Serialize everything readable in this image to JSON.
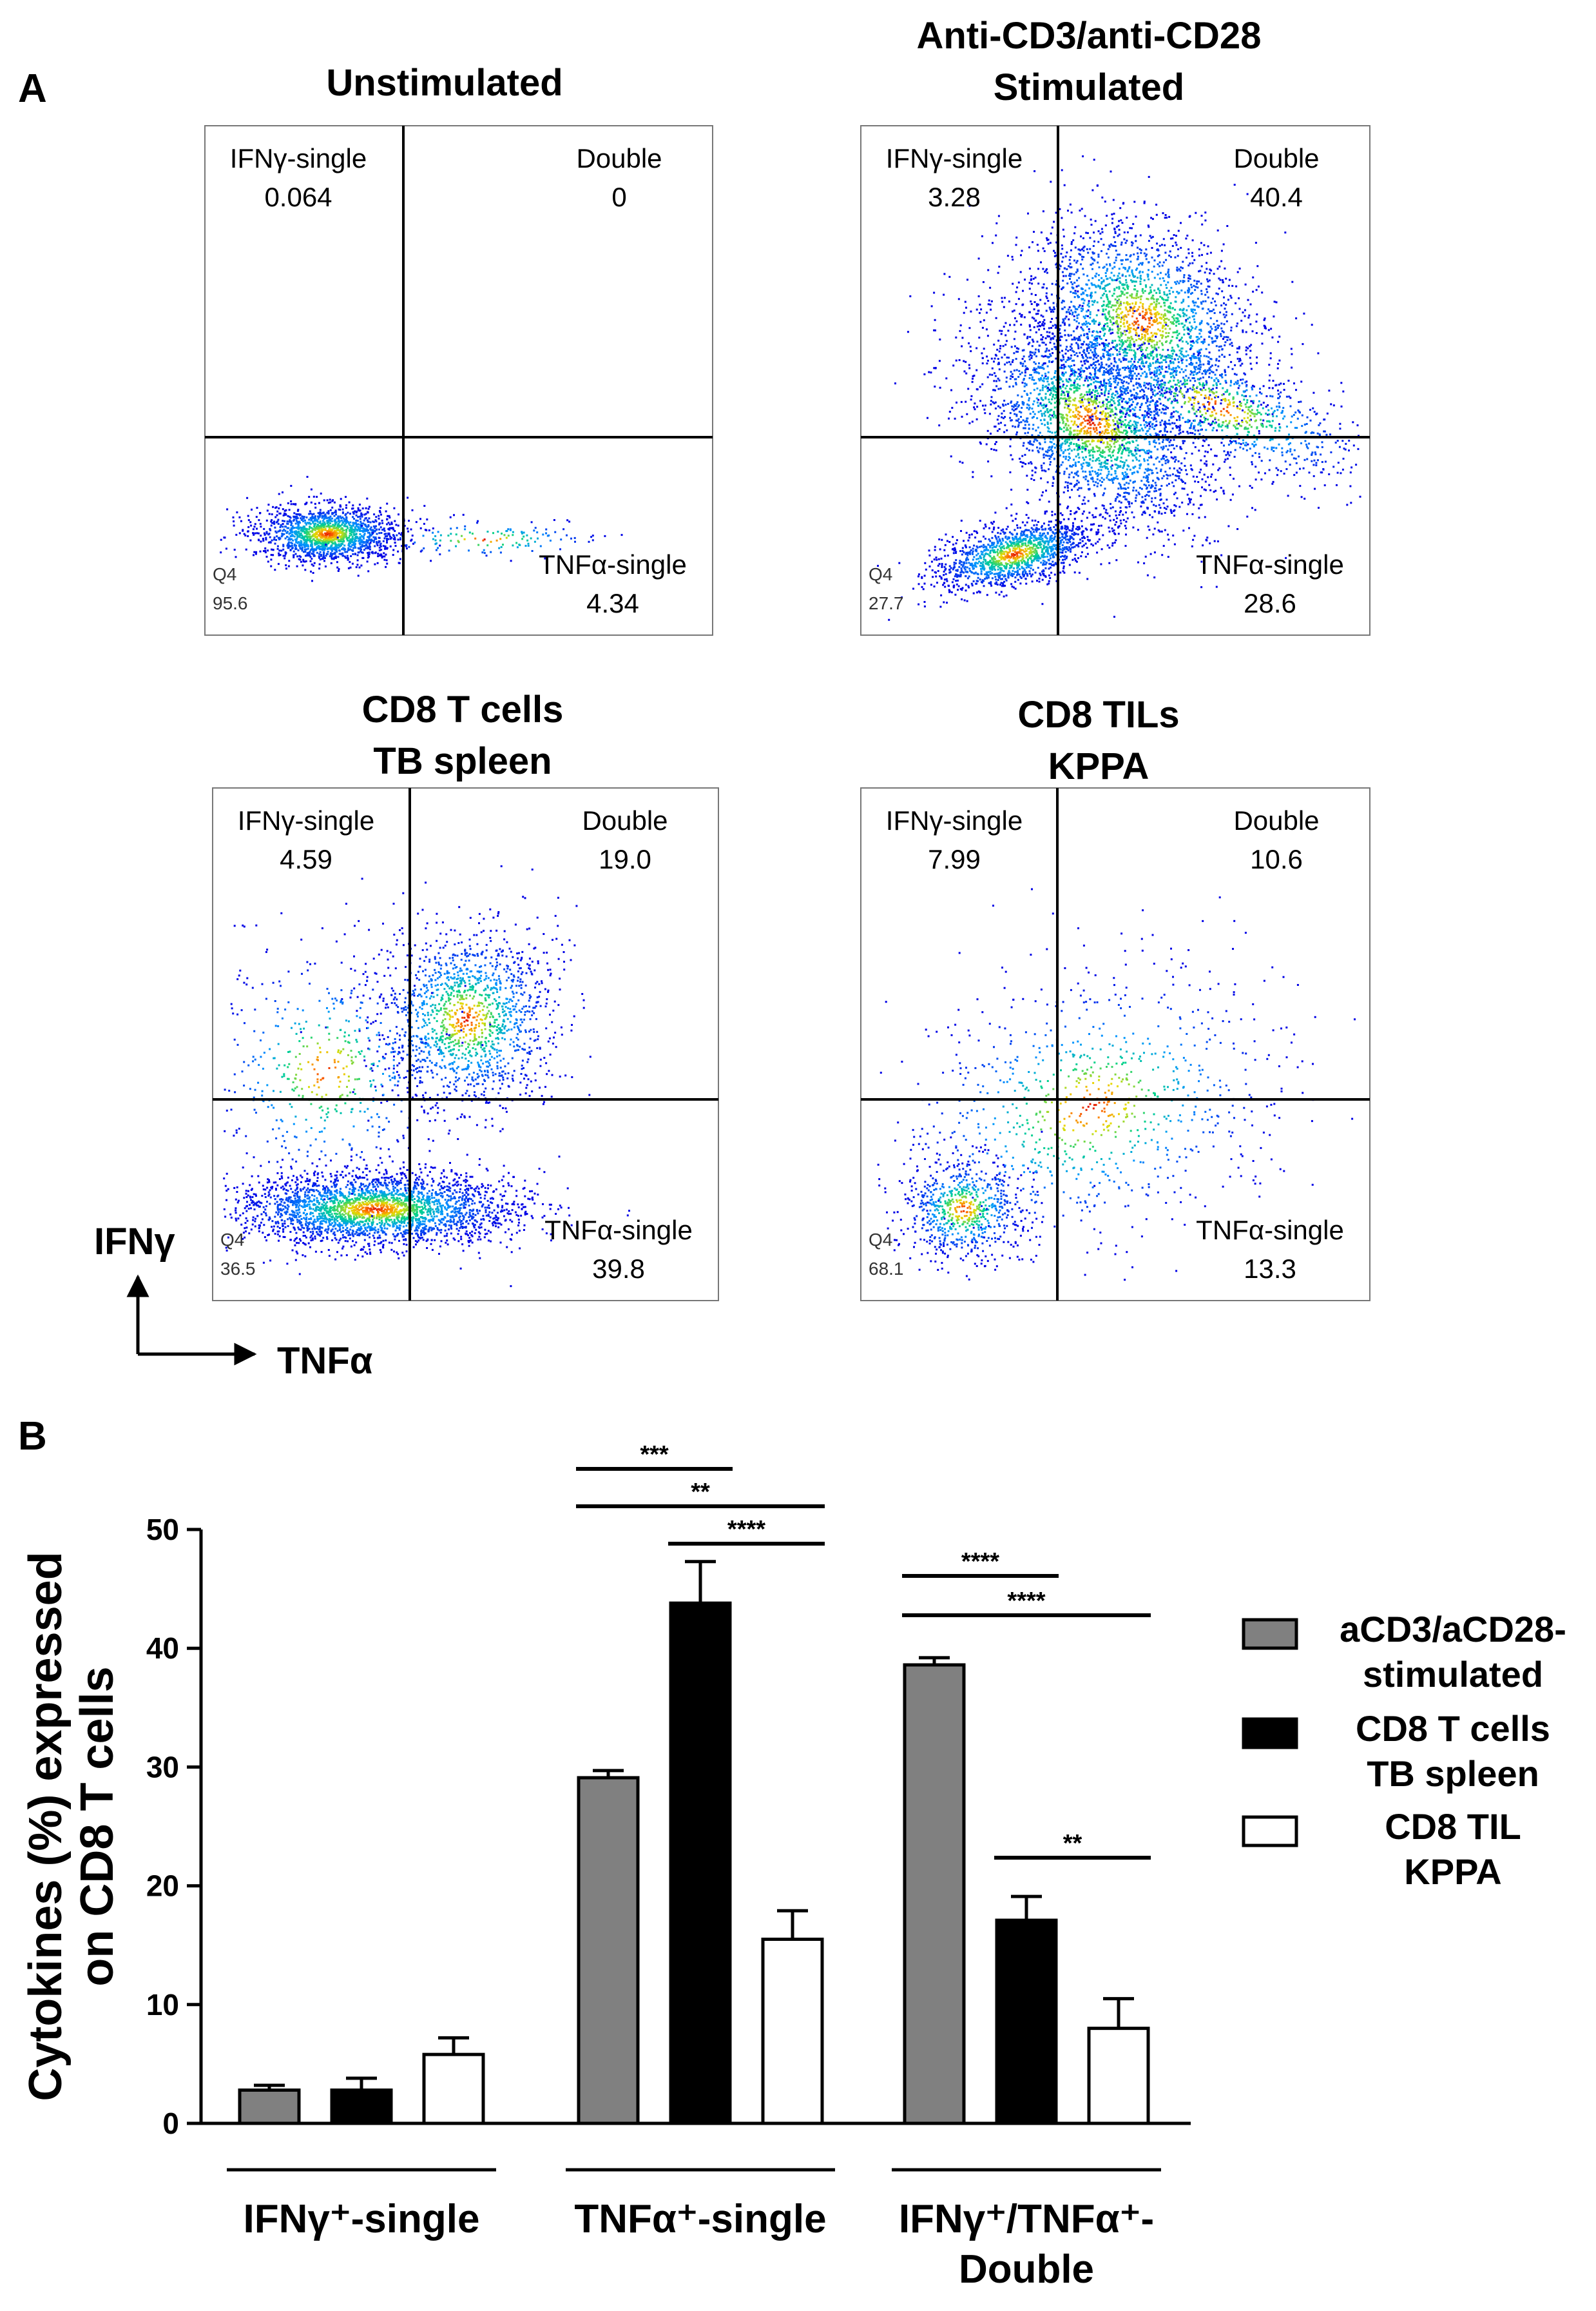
{
  "panel_a": {
    "letter": "A",
    "axis_y": "IFNγ",
    "axis_x": "TNFα",
    "plots": [
      {
        "title": [
          "Unstimulated"
        ],
        "ul_label": "IFNγ-single",
        "ul_value": "0.064",
        "ur_label": "Double",
        "ur_value": "0",
        "ll_gate": "Q4",
        "ll_value": "95.6",
        "lr_label": "TNFα-single",
        "lr_value": "4.34"
      },
      {
        "title": [
          "Anti-CD3/anti-CD28",
          "Stimulated"
        ],
        "ul_label": "IFNγ-single",
        "ul_value": "3.28",
        "ur_label": "Double",
        "ur_value": "40.4",
        "ll_gate": "Q4",
        "ll_value": "27.7",
        "lr_label": "TNFα-single",
        "lr_value": "28.6"
      },
      {
        "title": [
          "CD8 T cells",
          "TB spleen"
        ],
        "ul_label": "IFNγ-single",
        "ul_value": "4.59",
        "ur_label": "Double",
        "ur_value": "19.0",
        "ll_gate": "Q4",
        "ll_value": "36.5",
        "lr_label": "TNFα-single",
        "lr_value": "39.8"
      },
      {
        "title": [
          "CD8 TILs",
          "KPPA"
        ],
        "ul_label": "IFNγ-single",
        "ul_value": "7.99",
        "ur_label": "Double",
        "ur_value": "10.6",
        "ll_gate": "Q4",
        "ll_value": "68.1",
        "lr_label": "TNFα-single",
        "lr_value": "13.3"
      }
    ]
  },
  "panel_b": {
    "letter": "B"
  },
  "colors": {
    "stimulated": "#808080",
    "spleen": "#000000",
    "til": "#ffffff"
  },
  "chart_data": {
    "type": "bar",
    "ylabel": [
      "Cytokines (%) expressed",
      "on CD8 T cells"
    ],
    "ylim": [
      0,
      50
    ],
    "yticks": [
      0,
      10,
      20,
      30,
      40,
      50
    ],
    "groups": [
      {
        "label": [
          "IFNγ⁺-single"
        ]
      },
      {
        "label": [
          "TNFα⁺-single"
        ]
      },
      {
        "label": [
          "IFNγ⁺/TNFα⁺-",
          "Double"
        ]
      }
    ],
    "series": [
      {
        "name": [
          "aCD3/aCD28-",
          "stimulated"
        ],
        "values": [
          2.8,
          29.1,
          38.6
        ],
        "errors": [
          0.4,
          0.6,
          0.6
        ]
      },
      {
        "name": [
          "CD8 T cells",
          "TB spleen"
        ],
        "values": [
          2.8,
          43.8,
          17.1
        ],
        "errors": [
          1.0,
          3.5,
          2.0
        ]
      },
      {
        "name": [
          "CD8 TIL",
          "KPPA"
        ],
        "values": [
          5.8,
          15.5,
          8.0
        ],
        "errors": [
          1.4,
          2.4,
          2.5
        ]
      }
    ],
    "significance": [
      {
        "group": 1,
        "from": 0,
        "to": 1,
        "label": "***",
        "level": 0
      },
      {
        "group": 1,
        "from": 0,
        "to": 2,
        "label": "**",
        "level": 1
      },
      {
        "group": 1,
        "from": 1,
        "to": 2,
        "label": "****",
        "level": 2
      },
      {
        "group": 2,
        "from": 0,
        "to": 1,
        "label": "****",
        "level": 0
      },
      {
        "group": 2,
        "from": 0,
        "to": 2,
        "label": "****",
        "level": 1
      },
      {
        "group": 2,
        "from": 1,
        "to": 2,
        "label": "**",
        "level": 2
      }
    ]
  }
}
